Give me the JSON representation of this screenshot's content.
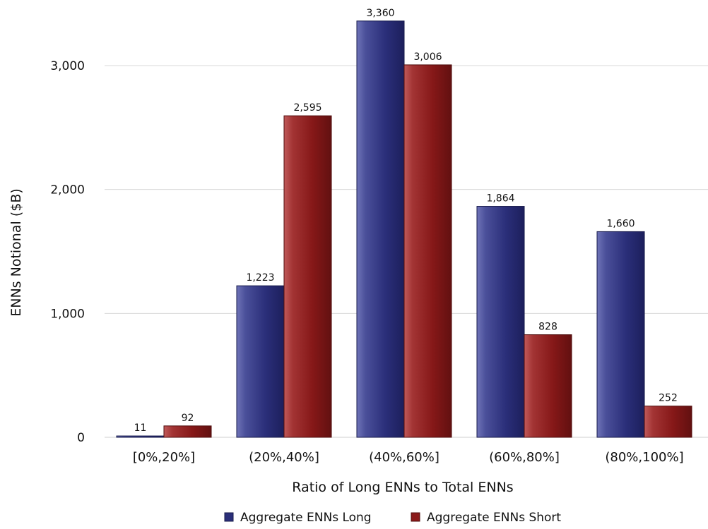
{
  "chart_data": {
    "type": "bar",
    "title": "",
    "xlabel": "Ratio of Long ENNs to Total ENNs",
    "ylabel": "ENNs Notional ($B)",
    "categories": [
      "[0%,20%]",
      "(20%,40%]",
      "(40%,60%]",
      "(60%,80%]",
      "(80%,100%]"
    ],
    "series": [
      {
        "name": "Aggregate ENNs Long",
        "values": [
          11,
          1223,
          3360,
          1864,
          1660
        ],
        "labels": [
          "11",
          "1,223",
          "3,360",
          "1,864",
          "1,660"
        ],
        "color": "#2b2f7a"
      },
      {
        "name": "Aggregate ENNs Short",
        "values": [
          92,
          2595,
          3006,
          828,
          252
        ],
        "labels": [
          "92",
          "2,595",
          "3,006",
          "828",
          "252"
        ],
        "color": "#8b1a1a"
      }
    ],
    "ylim": [
      0,
      3400
    ],
    "yticks": [
      0,
      1000,
      2000,
      3000
    ],
    "ytick_labels": [
      "0",
      "1,000",
      "2,000",
      "3,000"
    ],
    "grid": true,
    "legend_position": "bottom"
  }
}
